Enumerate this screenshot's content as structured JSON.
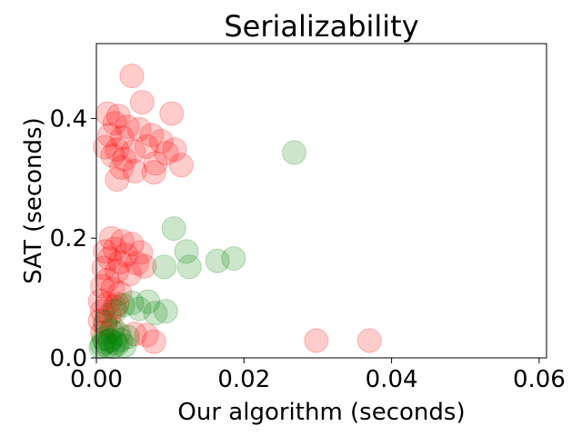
{
  "chart_data": {
    "type": "scatter",
    "title": "Serializability",
    "xlabel": "Our algorithm (seconds)",
    "ylabel": "SAT (seconds)",
    "xlim": [
      0.0,
      0.061
    ],
    "ylim": [
      0.0,
      0.525
    ],
    "xticks": [
      0.0,
      0.02,
      0.04,
      0.06
    ],
    "xtick_labels": [
      "0.00",
      "0.02",
      "0.04",
      "0.06"
    ],
    "yticks": [
      0.0,
      0.2,
      0.4
    ],
    "ytick_labels": [
      "0.0",
      "0.2",
      "0.4"
    ],
    "grid": false,
    "series": [
      {
        "color": "#ff0000",
        "alpha": 0.2,
        "points": [
          [
            0.0048,
            0.471
          ],
          [
            0.0015,
            0.408
          ],
          [
            0.003,
            0.404
          ],
          [
            0.0062,
            0.427
          ],
          [
            0.0102,
            0.408
          ],
          [
            0.0025,
            0.392
          ],
          [
            0.0042,
            0.386
          ],
          [
            0.0058,
            0.382
          ],
          [
            0.0018,
            0.372
          ],
          [
            0.0035,
            0.368
          ],
          [
            0.0075,
            0.372
          ],
          [
            0.0088,
            0.362
          ],
          [
            0.0012,
            0.352
          ],
          [
            0.0028,
            0.348
          ],
          [
            0.005,
            0.345
          ],
          [
            0.0068,
            0.353
          ],
          [
            0.0095,
            0.342
          ],
          [
            0.0106,
            0.348
          ],
          [
            0.0022,
            0.338
          ],
          [
            0.0038,
            0.332
          ],
          [
            0.008,
            0.325
          ],
          [
            0.0115,
            0.322
          ],
          [
            0.0034,
            0.318
          ],
          [
            0.0052,
            0.312
          ],
          [
            0.0078,
            0.31
          ],
          [
            0.0028,
            0.298
          ],
          [
            0.002,
            0.2
          ],
          [
            0.0035,
            0.195
          ],
          [
            0.0048,
            0.19
          ],
          [
            0.0012,
            0.178
          ],
          [
            0.0025,
            0.182
          ],
          [
            0.004,
            0.172
          ],
          [
            0.006,
            0.176
          ],
          [
            0.0018,
            0.166
          ],
          [
            0.0032,
            0.16
          ],
          [
            0.0055,
            0.158
          ],
          [
            0.0065,
            0.153
          ],
          [
            0.001,
            0.15
          ],
          [
            0.0028,
            0.145
          ],
          [
            0.0045,
            0.14
          ],
          [
            0.0015,
            0.13
          ],
          [
            0.0008,
            0.12
          ],
          [
            0.0022,
            0.115
          ],
          [
            0.0032,
            0.108
          ],
          [
            0.0005,
            0.095
          ],
          [
            0.0015,
            0.09
          ],
          [
            0.0025,
            0.085
          ],
          [
            0.0008,
            0.078
          ],
          [
            0.0018,
            0.072
          ],
          [
            0.0005,
            0.062
          ],
          [
            0.0012,
            0.055
          ],
          [
            0.0022,
            0.05
          ],
          [
            0.0008,
            0.042
          ],
          [
            0.0028,
            0.09
          ],
          [
            0.0052,
            0.04
          ],
          [
            0.0068,
            0.038
          ],
          [
            0.0078,
            0.027
          ],
          [
            0.0298,
            0.029
          ],
          [
            0.037,
            0.029
          ]
        ]
      },
      {
        "color": "#008000",
        "alpha": 0.2,
        "points": [
          [
            0.0268,
            0.343
          ],
          [
            0.0105,
            0.216
          ],
          [
            0.0122,
            0.178
          ],
          [
            0.0186,
            0.166
          ],
          [
            0.0164,
            0.162
          ],
          [
            0.0092,
            0.152
          ],
          [
            0.0126,
            0.152
          ],
          [
            0.007,
            0.094
          ],
          [
            0.0048,
            0.092
          ],
          [
            0.0036,
            0.088
          ],
          [
            0.0058,
            0.082
          ],
          [
            0.008,
            0.075
          ],
          [
            0.0094,
            0.078
          ],
          [
            0.0025,
            0.078
          ],
          [
            0.0012,
            0.06
          ],
          [
            0.002,
            0.045
          ],
          [
            0.003,
            0.04
          ],
          [
            0.0042,
            0.035
          ],
          [
            0.001,
            0.032
          ],
          [
            0.0018,
            0.028
          ],
          [
            0.0026,
            0.025
          ],
          [
            0.0033,
            0.03
          ],
          [
            0.0008,
            0.022
          ],
          [
            0.0015,
            0.02
          ],
          [
            0.0022,
            0.018
          ],
          [
            0.0028,
            0.022
          ],
          [
            0.0038,
            0.02
          ],
          [
            0.0012,
            0.026
          ],
          [
            0.0006,
            0.018
          ],
          [
            0.0019,
            0.03
          ]
        ]
      }
    ]
  }
}
